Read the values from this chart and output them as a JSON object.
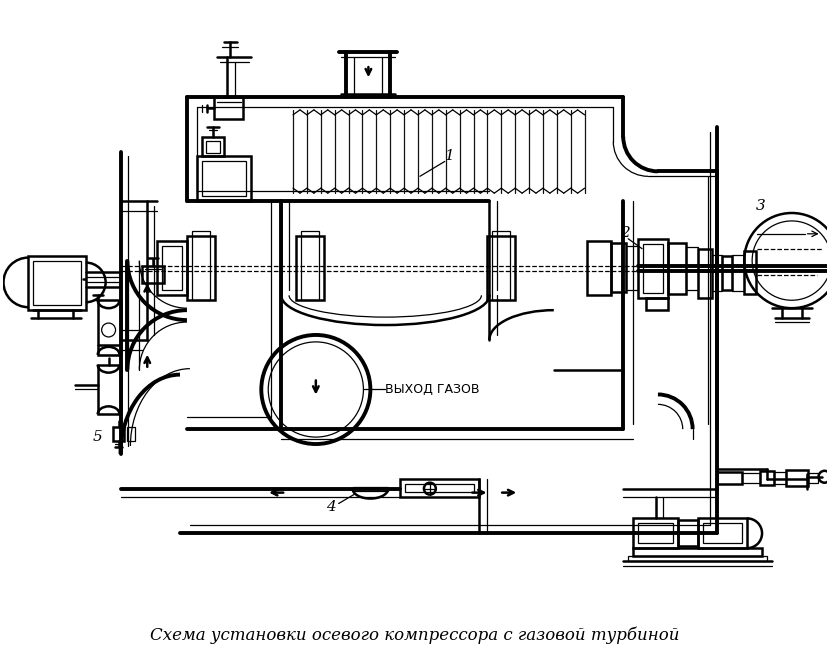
{
  "title": "Схема установки осевого компрессора с газовой турбиной",
  "title_fontsize": 12,
  "bg_color": "#ffffff",
  "line_color": "#000000",
  "label_vykhod": "ВЫХОД ГАЗОВ",
  "lw_main": 1.8,
  "lw_thick": 2.8,
  "lw_thin": 0.9
}
